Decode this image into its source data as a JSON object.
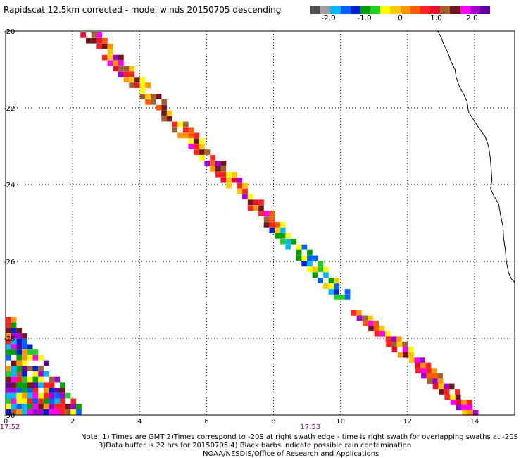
{
  "title": "Rapidscat 12.5km corrected - model winds 20150705 descending",
  "colorbar": {
    "colors": [
      "#505050",
      "#a0a0a0",
      "#00b8ff",
      "#0060ff",
      "#0020d0",
      "#00a000",
      "#20d020",
      "#ffff00",
      "#ffc800",
      "#ff9600",
      "#ff5a00",
      "#ff2020",
      "#e81030",
      "#a06030",
      "#701818",
      "#ff00ff",
      "#a000d0",
      "#6000a0"
    ],
    "labels": [
      "-2.0",
      "-1.0",
      "0",
      "1.0",
      "2.0"
    ],
    "label_values": [
      -2.0,
      -1.0,
      0,
      1.0,
      2.0
    ],
    "range": [
      -2.5,
      2.5
    ]
  },
  "axes": {
    "x_ticks": [
      "0",
      "2",
      "4",
      "6",
      "8",
      "10",
      "12",
      "14"
    ],
    "y_ticks": [
      "-20",
      "-22",
      "-24",
      "-26",
      "-28",
      "-30"
    ],
    "xlim": [
      0,
      15.2
    ],
    "ylim": [
      -30,
      -20
    ],
    "grid": true,
    "grid_style": "dotted"
  },
  "time_labels": [
    {
      "text": "17:52",
      "lon": 0.0
    },
    {
      "text": "17:53",
      "lon": 9.1
    }
  ],
  "notes": [
    "Note: 1) Times are GMT 2)Times correspond to -20S at right swath edge - time is right swath for overlapping swaths at -20S",
    "3)Data buffer is 22 hrs for 20150705 4) Black barbs indicate possible rain contamination",
    "NOAA/NESDIS/Office of Research and Applications"
  ],
  "coastline": [
    [
      12.9,
      -20.0
    ],
    [
      13.0,
      -20.15
    ],
    [
      13.08,
      -20.35
    ],
    [
      13.2,
      -20.55
    ],
    [
      13.3,
      -20.8
    ],
    [
      13.42,
      -21.0
    ],
    [
      13.45,
      -21.2
    ],
    [
      13.55,
      -21.45
    ],
    [
      13.68,
      -21.65
    ],
    [
      13.78,
      -21.85
    ],
    [
      13.82,
      -22.1
    ],
    [
      14.0,
      -22.35
    ],
    [
      14.15,
      -22.55
    ],
    [
      14.32,
      -22.75
    ],
    [
      14.42,
      -23.0
    ],
    [
      14.47,
      -23.3
    ],
    [
      14.5,
      -23.6
    ],
    [
      14.52,
      -23.9
    ],
    [
      14.48,
      -24.1
    ],
    [
      14.58,
      -24.3
    ],
    [
      14.72,
      -24.5
    ],
    [
      14.78,
      -24.8
    ],
    [
      14.85,
      -25.1
    ],
    [
      14.87,
      -25.4
    ],
    [
      14.92,
      -25.7
    ],
    [
      14.95,
      -26.0
    ],
    [
      15.02,
      -26.3
    ],
    [
      15.1,
      -26.45
    ],
    [
      15.2,
      -26.55
    ]
  ],
  "swaths": [
    {
      "name": "swath-1",
      "start_lon": 2.85,
      "start_lat": -20.0,
      "dlon": 0.6,
      "dlat": 0.6
    },
    {
      "name": "swath-2",
      "start_lon": 10.5,
      "start_lat": -27.7,
      "dlon": 0.6,
      "dlat": 0.6
    }
  ],
  "left_patch": {
    "lon_min": 0.0,
    "lon_max": 2.3,
    "lat_top": -27.7,
    "lat_bottom": -30.0
  }
}
